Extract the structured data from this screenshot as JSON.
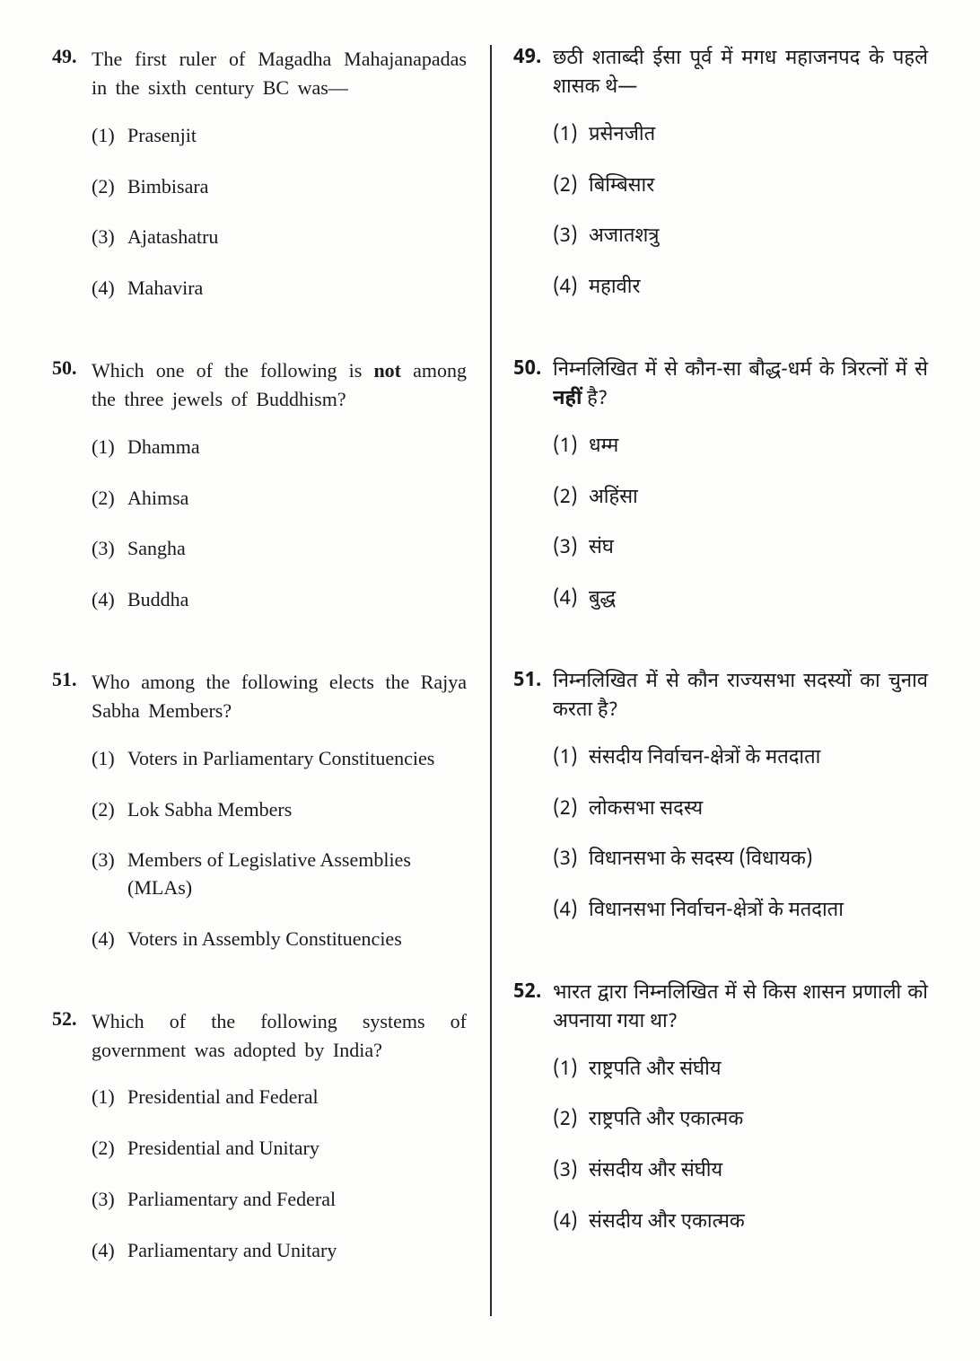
{
  "left": {
    "questions": [
      {
        "num": "49.",
        "text": "The first ruler of Magadha Mahajanapadas in the sixth century BC was—",
        "options": [
          {
            "n": "(1)",
            "t": "Prasenjit"
          },
          {
            "n": "(2)",
            "t": "Bimbisara"
          },
          {
            "n": "(3)",
            "t": "Ajatashatru"
          },
          {
            "n": "(4)",
            "t": "Mahavira"
          }
        ]
      },
      {
        "num": "50.",
        "text_pre": "Which one of the following is ",
        "text_bold": "not",
        "text_post": " among the three jewels of Buddhism?",
        "options": [
          {
            "n": "(1)",
            "t": "Dhamma"
          },
          {
            "n": "(2)",
            "t": "Ahimsa"
          },
          {
            "n": "(3)",
            "t": "Sangha"
          },
          {
            "n": "(4)",
            "t": "Buddha"
          }
        ]
      },
      {
        "num": "51.",
        "text": "Who among the following elects the Rajya Sabha Members?",
        "options": [
          {
            "n": "(1)",
            "t": "Voters in Parliamentary Constituencies"
          },
          {
            "n": "(2)",
            "t": "Lok Sabha Members"
          },
          {
            "n": "(3)",
            "t": "Members of Legislative Assemblies (MLAs)"
          },
          {
            "n": "(4)",
            "t": "Voters in Assembly Constituencies"
          }
        ]
      },
      {
        "num": "52.",
        "text": "Which of the following systems of government was adopted by India?",
        "options": [
          {
            "n": "(1)",
            "t": "Presidential and Federal"
          },
          {
            "n": "(2)",
            "t": "Presidential and Unitary"
          },
          {
            "n": "(3)",
            "t": "Parliamentary and Federal"
          },
          {
            "n": "(4)",
            "t": "Parliamentary and Unitary"
          }
        ]
      }
    ]
  },
  "right": {
    "questions": [
      {
        "num": "49.",
        "text": "छठी शताब्दी ईसा पूर्व में मगध महाजनपद के पहले शासक थे—",
        "options": [
          {
            "n": "(1)",
            "t": "प्रसेनजीत"
          },
          {
            "n": "(2)",
            "t": "बिम्बिसार"
          },
          {
            "n": "(3)",
            "t": "अजातशत्रु"
          },
          {
            "n": "(4)",
            "t": "महावीर"
          }
        ]
      },
      {
        "num": "50.",
        "text_pre": "निम्नलिखित में से कौन-सा बौद्ध-धर्म के त्रिरत्नों में से ",
        "text_bold": "नहीं",
        "text_post": " है?",
        "options": [
          {
            "n": "(1)",
            "t": "धम्म"
          },
          {
            "n": "(2)",
            "t": "अहिंसा"
          },
          {
            "n": "(3)",
            "t": "संघ"
          },
          {
            "n": "(4)",
            "t": "बुद्ध"
          }
        ]
      },
      {
        "num": "51.",
        "text": "निम्नलिखित में से कौन राज्यसभा सदस्यों का चुनाव करता है?",
        "options": [
          {
            "n": "(1)",
            "t": "संसदीय निर्वाचन-क्षेत्रों के मतदाता"
          },
          {
            "n": "(2)",
            "t": "लोकसभा सदस्य"
          },
          {
            "n": "(3)",
            "t": "विधानसभा के सदस्य (विधायक)"
          },
          {
            "n": "(4)",
            "t": "विधानसभा निर्वाचन-क्षेत्रों के मतदाता"
          }
        ]
      },
      {
        "num": "52.",
        "text": "भारत द्वारा निम्नलिखित में से किस शासन प्रणाली को अपनाया गया था?",
        "options": [
          {
            "n": "(1)",
            "t": "राष्ट्रपति और संघीय"
          },
          {
            "n": "(2)",
            "t": "राष्ट्रपति और एकात्मक"
          },
          {
            "n": "(3)",
            "t": "संसदीय और संघीय"
          },
          {
            "n": "(4)",
            "t": "संसदीय और एकात्मक"
          }
        ]
      }
    ]
  }
}
